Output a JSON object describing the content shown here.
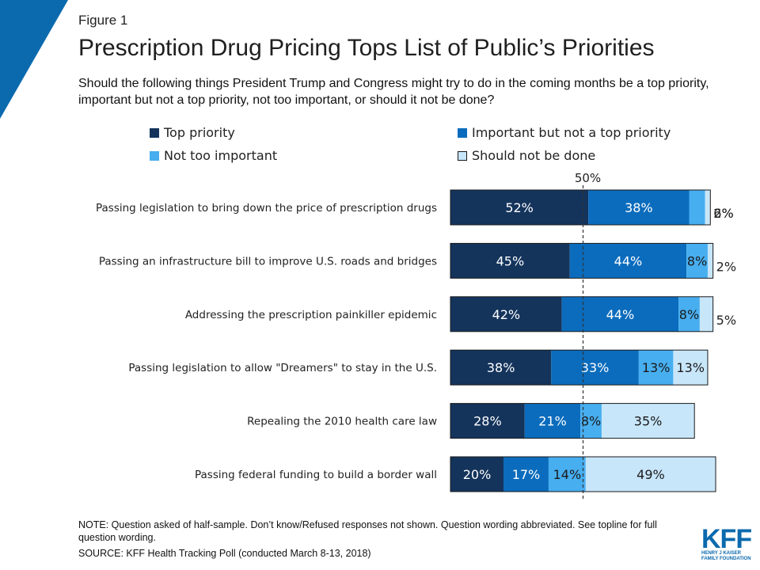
{
  "figure_label": "Figure 1",
  "title": "Prescription Drug Pricing Tops List of Public’s Priorities",
  "subtitle": "Should the following things President Trump and Congress might try to do in the coming months be a top priority, important but not a top priority, not too important, or should it not be done?",
  "colors": {
    "top_priority": "#14345c",
    "important": "#0b6cbd",
    "not_too_important": "#47aef0",
    "should_not": "#c8e6fa",
    "accent": "#0b6aae"
  },
  "legend": [
    {
      "label": "Top priority",
      "color": "#14345c"
    },
    {
      "label": "Important but not a top priority",
      "color": "#0b6cbd"
    },
    {
      "label": "Not too important",
      "color": "#47aef0"
    },
    {
      "label": "Should not be done",
      "color": "#c8e6fa"
    }
  ],
  "chart_data": {
    "type": "bar",
    "orientation": "horizontal",
    "stacked": true,
    "reference_line": {
      "value": 50,
      "label": "50%"
    },
    "categories": [
      "Passing legislation to bring down the price of prescription drugs",
      "Passing an infrastructure bill to improve U.S. roads and bridges",
      "Addressing the prescription painkiller epidemic",
      "Passing legislation to allow \"Dreamers\" to stay in the U.S.",
      "Repealing the 2010 health care law",
      "Passing federal funding to build a border wall"
    ],
    "series": [
      {
        "name": "Top priority",
        "color": "#14345c",
        "values": [
          52,
          45,
          42,
          38,
          28,
          20
        ]
      },
      {
        "name": "Important but not a top priority",
        "color": "#0b6cbd",
        "values": [
          38,
          44,
          44,
          33,
          21,
          17
        ]
      },
      {
        "name": "Not too important",
        "color": "#47aef0",
        "values": [
          6,
          8,
          8,
          13,
          8,
          14
        ]
      },
      {
        "name": "Should not be done",
        "color": "#c8e6fa",
        "values": [
          2,
          2,
          5,
          13,
          35,
          49
        ]
      }
    ],
    "xlim": [
      0,
      100
    ]
  },
  "notes": {
    "note": "NOTE: Question asked of half-sample. Don’t know/Refused responses not shown. Question wording abbreviated. See topline for full question wording.",
    "source": "SOURCE: KFF Health Tracking Poll (conducted March 8-13, 2018)"
  },
  "logo": {
    "mark": "KFF",
    "line1": "HENRY J KAISER",
    "line2": "FAMILY FOUNDATION"
  }
}
